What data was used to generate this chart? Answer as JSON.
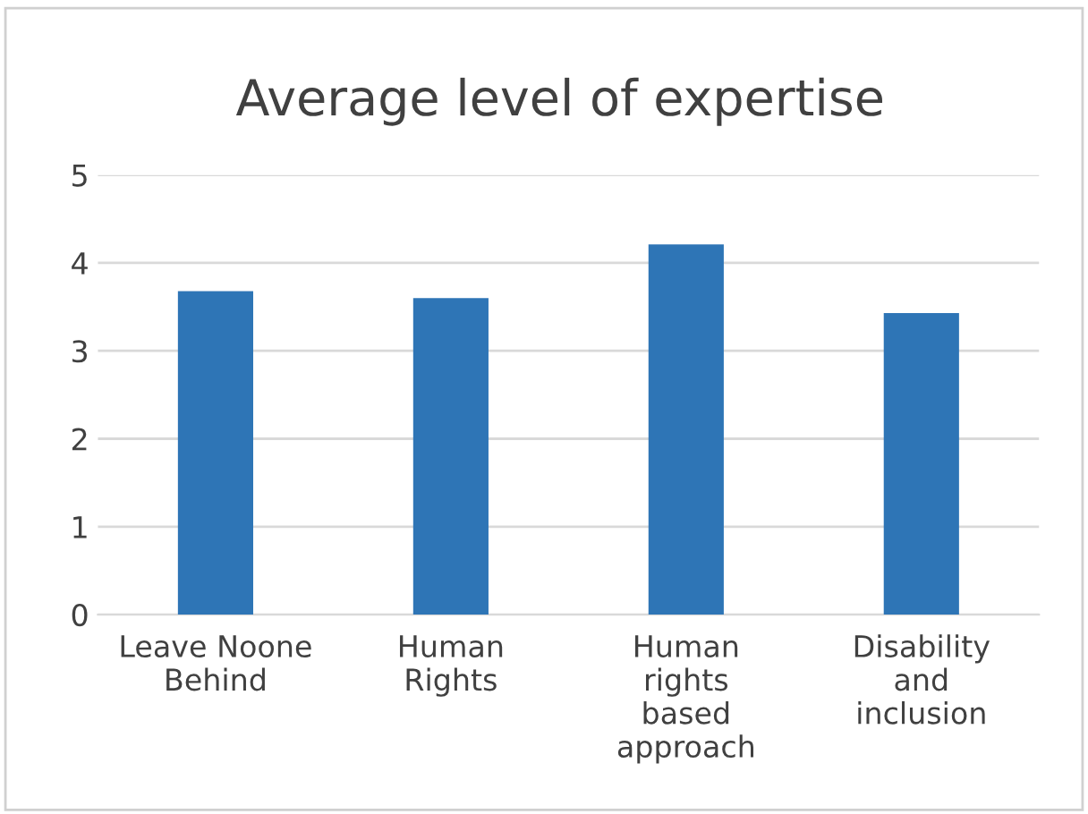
{
  "chart_data": {
    "type": "bar",
    "title": "Average level of expertise",
    "categories": [
      "Leave Noone Behind",
      "Human Rights",
      "Human rights based approach",
      "Disability and inclusion"
    ],
    "values": [
      3.68,
      3.6,
      4.21,
      3.43
    ],
    "color": "#2e75b6",
    "ylim": [
      0,
      5
    ],
    "yticks": [
      0,
      1,
      2,
      3,
      4,
      5
    ],
    "grid": "y"
  }
}
